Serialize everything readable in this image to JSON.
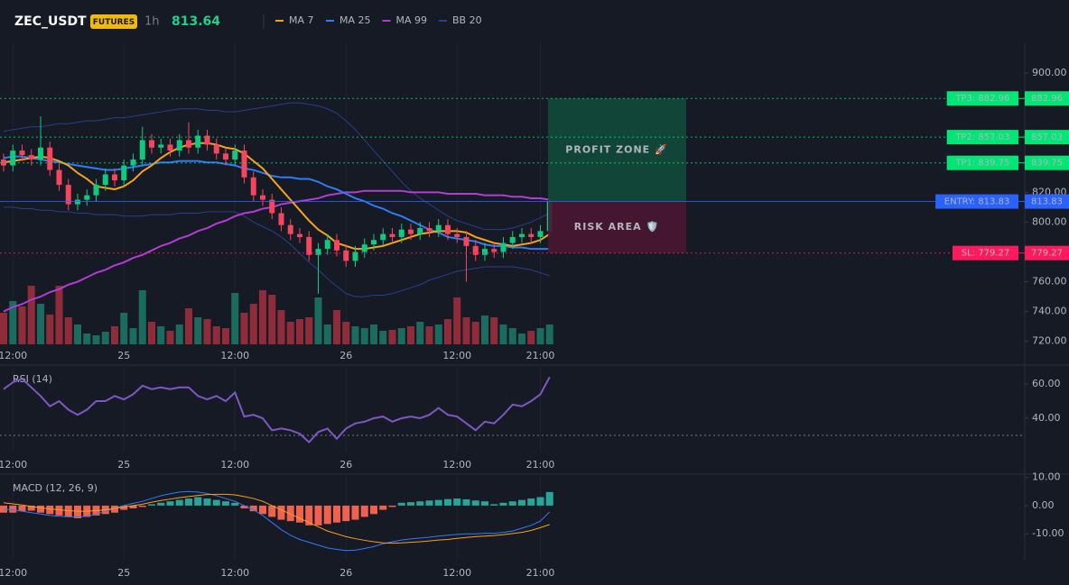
{
  "header": {
    "symbol": "ZEC_USDT",
    "badge": "FUTURES",
    "interval": "1h",
    "price": 813.64
  },
  "chart_data": [
    {
      "type": "candlestick",
      "categories": [
        null,
        "12:00",
        null,
        null,
        null,
        null,
        null,
        null,
        null,
        null,
        null,
        null,
        null,
        "25",
        null,
        null,
        null,
        null,
        null,
        null,
        null,
        null,
        null,
        null,
        null,
        "12:00",
        null,
        null,
        null,
        null,
        null,
        null,
        null,
        null,
        null,
        null,
        null,
        "26",
        null,
        null,
        null,
        null,
        null,
        null,
        null,
        null,
        null,
        null,
        null,
        "12:00",
        null,
        null,
        null,
        null,
        null,
        null,
        null,
        null,
        "21:00",
        null
      ],
      "open": [
        842,
        838,
        848,
        845,
        842,
        850,
        835,
        825,
        812,
        815,
        818,
        825,
        832,
        828,
        838,
        842,
        855,
        850,
        852,
        848,
        855,
        850,
        858,
        852,
        846,
        842,
        848,
        830,
        818,
        815,
        806,
        798,
        792,
        790,
        778,
        782,
        788,
        781,
        774,
        780,
        785,
        788,
        792,
        790,
        795,
        792,
        796,
        794,
        798,
        792,
        790,
        784,
        778,
        782,
        780,
        786,
        790,
        792,
        790,
        794
      ],
      "high": [
        846,
        852,
        852,
        849,
        871,
        854,
        839,
        829,
        819,
        822,
        829,
        836,
        836,
        842,
        846,
        864,
        859,
        856,
        856,
        859,
        867,
        862,
        862,
        856,
        850,
        852,
        852,
        834,
        822,
        819,
        810,
        802,
        796,
        794,
        786,
        792,
        792,
        785,
        784,
        789,
        792,
        796,
        796,
        799,
        799,
        800,
        800,
        802,
        802,
        796,
        794,
        788,
        786,
        786,
        790,
        794,
        796,
        796,
        798,
        816
      ],
      "low": [
        834,
        834,
        841,
        838,
        838,
        831,
        821,
        808,
        808,
        811,
        814,
        821,
        824,
        824,
        834,
        838,
        846,
        846,
        844,
        844,
        846,
        846,
        848,
        842,
        838,
        838,
        826,
        814,
        811,
        802,
        794,
        788,
        786,
        774,
        752,
        778,
        777,
        770,
        770,
        776,
        781,
        784,
        786,
        786,
        788,
        788,
        790,
        790,
        788,
        786,
        760,
        774,
        774,
        776,
        776,
        782,
        786,
        786,
        786,
        790
      ],
      "close": [
        838,
        848,
        845,
        842,
        850,
        835,
        825,
        812,
        815,
        818,
        825,
        832,
        828,
        838,
        842,
        855,
        850,
        852,
        848,
        855,
        850,
        858,
        852,
        846,
        842,
        848,
        830,
        818,
        815,
        806,
        798,
        792,
        790,
        778,
        782,
        788,
        781,
        774,
        780,
        785,
        788,
        792,
        790,
        795,
        792,
        796,
        794,
        798,
        792,
        790,
        784,
        778,
        782,
        780,
        786,
        790,
        792,
        790,
        794,
        813.64
      ],
      "volume": [
        35,
        48,
        42,
        65,
        45,
        33,
        65,
        30,
        22,
        12,
        10,
        14,
        20,
        35,
        18,
        60,
        25,
        20,
        15,
        22,
        40,
        30,
        28,
        20,
        18,
        57,
        35,
        45,
        60,
        55,
        38,
        25,
        28,
        30,
        52,
        22,
        38,
        25,
        20,
        18,
        22,
        15,
        16,
        18,
        20,
        25,
        20,
        22,
        28,
        52,
        30,
        25,
        32,
        30,
        22,
        18,
        12,
        15,
        18,
        22
      ],
      "up_color": "#0ecb81",
      "down_color": "#f6465d",
      "volume_up_color": "#1b6b5e",
      "volume_down_color": "#8e2c3a",
      "series": [
        {
          "name": "MA 7",
          "color": "#f7a21b",
          "values": [
            840,
            841,
            842,
            843,
            844,
            843,
            841,
            838,
            833,
            829,
            824,
            823,
            822,
            824,
            828,
            834,
            838,
            843,
            847,
            850,
            852,
            853,
            853,
            852,
            850,
            849,
            846,
            841,
            836,
            829,
            822,
            815,
            808,
            801,
            795,
            791,
            786,
            784,
            782,
            782,
            783,
            784,
            786,
            788,
            790,
            792,
            793,
            794,
            794,
            794,
            793,
            790,
            788,
            786,
            785,
            784,
            785,
            786,
            788,
            792
          ]
        },
        {
          "name": "MA 25",
          "color": "#2f7cf6",
          "values": [
            843,
            844,
            844,
            843,
            842,
            841,
            840,
            839,
            838,
            837,
            836,
            835,
            835,
            836,
            837,
            838,
            839,
            840,
            840,
            841,
            841,
            841,
            840,
            840,
            839,
            838,
            836,
            835,
            833,
            831,
            830,
            830,
            829,
            829,
            827,
            824,
            822,
            819,
            816,
            814,
            811,
            809,
            806,
            804,
            801,
            798,
            795,
            793,
            790,
            789,
            788,
            787,
            785,
            784,
            784,
            783,
            783,
            782,
            782,
            782
          ]
        },
        {
          "name": "MA 99",
          "color": "#b43bd4",
          "values": [
            740,
            743,
            745,
            748,
            750,
            753,
            755,
            758,
            760,
            763,
            766,
            768,
            771,
            773,
            776,
            778,
            781,
            784,
            786,
            789,
            791,
            794,
            796,
            799,
            801,
            804,
            806,
            807,
            809,
            810,
            812,
            813,
            814,
            815,
            816,
            818,
            819,
            820,
            820,
            821,
            821,
            821,
            821,
            821,
            820,
            820,
            820,
            820,
            819,
            819,
            819,
            819,
            818,
            818,
            818,
            817,
            817,
            816,
            816,
            815
          ]
        },
        {
          "name": "BB 20",
          "color": "#2a3d8f",
          "values": [
            861,
            862,
            863,
            864,
            864,
            865,
            866,
            866,
            867,
            868,
            868,
            869,
            870,
            870,
            871,
            872,
            873,
            874,
            875,
            876,
            876,
            876,
            875,
            875,
            874,
            874,
            875,
            876,
            877,
            878,
            879,
            880,
            880,
            879,
            878,
            876,
            873,
            868,
            862,
            855,
            848,
            841,
            834,
            827,
            821,
            816,
            812,
            808,
            804,
            801,
            799,
            797,
            795,
            795,
            795,
            796,
            798,
            800,
            803,
            806
          ],
          "lower": [
            810,
            810,
            809,
            809,
            808,
            808,
            807,
            807,
            806,
            806,
            805,
            805,
            805,
            804,
            804,
            804,
            805,
            805,
            805,
            806,
            806,
            806,
            807,
            807,
            807,
            807,
            804,
            800,
            797,
            794,
            790,
            785,
            779,
            773,
            768,
            762,
            757,
            752,
            750,
            750,
            751,
            751,
            752,
            754,
            756,
            758,
            761,
            763,
            765,
            767,
            768,
            769,
            770,
            770,
            770,
            770,
            769,
            768,
            766,
            764
          ]
        }
      ],
      "levels": [
        {
          "label": "TP3: 882.96",
          "value": 882.96,
          "color": "#00e676",
          "style": "dotted"
        },
        {
          "label": "TP2: 857.03",
          "value": 857.03,
          "color": "#00e676",
          "style": "dotted"
        },
        {
          "label": "TP1: 839.75",
          "value": 839.75,
          "color": "#00e676",
          "style": "dotted"
        },
        {
          "label": "ENTRY: 813.83",
          "value": 813.83,
          "color": "#2962ff",
          "style": "solid"
        },
        {
          "label": "SL: 779.27",
          "value": 779.27,
          "color": "#ff1a5e",
          "style": "dotted"
        }
      ],
      "zones": [
        {
          "label": "PROFIT ZONE 🚀",
          "color": "#1fd18a",
          "fill": "#0f4a3a"
        },
        {
          "label": "RISK AREA 🛡️",
          "color": "#ff2a6d",
          "fill": "#4a1632"
        }
      ],
      "ylim": [
        718,
        920
      ],
      "yticks": [
        {
          "value": 900,
          "label": "900.00"
        },
        {
          "value": 820,
          "label": "820.00"
        },
        {
          "value": 800,
          "label": "800.00"
        },
        {
          "value": 760,
          "label": "760.00"
        },
        {
          "value": 740,
          "label": "740.00"
        },
        {
          "value": 720,
          "label": "720.00"
        }
      ]
    },
    {
      "type": "line",
      "title": "RSI (14)",
      "categories": [
        null,
        "12:00",
        null,
        null,
        null,
        null,
        null,
        null,
        null,
        null,
        null,
        null,
        null,
        "25",
        null,
        null,
        null,
        null,
        null,
        null,
        null,
        null,
        null,
        null,
        null,
        "12:00",
        null,
        null,
        null,
        null,
        null,
        null,
        null,
        null,
        null,
        null,
        null,
        "26",
        null,
        null,
        null,
        null,
        null,
        null,
        null,
        null,
        null,
        null,
        null,
        "12:00",
        null,
        null,
        null,
        null,
        null,
        null,
        null,
        null,
        "21:00",
        null
      ],
      "series": [
        {
          "color": "#7e57c2",
          "values": [
            57,
            61,
            63,
            58,
            53,
            47,
            50,
            45,
            42,
            45,
            50,
            50,
            53,
            51,
            54,
            59,
            57,
            58,
            57,
            58,
            58,
            53,
            51,
            53,
            50,
            55,
            41,
            42,
            40,
            33,
            34,
            33,
            31,
            26,
            32,
            34,
            28,
            34,
            37,
            38,
            40,
            41,
            38,
            40,
            41,
            40,
            42,
            46,
            42,
            41,
            37,
            33,
            38,
            37,
            42,
            48,
            47,
            50,
            54,
            64
          ]
        }
      ],
      "levels": [
        30
      ],
      "ylim": [
        20,
        70
      ],
      "yticks": [
        {
          "value": 60,
          "label": "60.00"
        },
        {
          "value": 40,
          "label": "40.00"
        }
      ]
    },
    {
      "type": "macd",
      "title": "MACD (12, 26, 9)",
      "categories": [
        null,
        "12:00",
        null,
        null,
        null,
        null,
        null,
        null,
        null,
        null,
        null,
        null,
        null,
        "25",
        null,
        null,
        null,
        null,
        null,
        null,
        null,
        null,
        null,
        null,
        null,
        "12:00",
        null,
        null,
        null,
        null,
        null,
        null,
        null,
        null,
        null,
        null,
        null,
        "26",
        null,
        null,
        null,
        null,
        null,
        null,
        null,
        null,
        null,
        null,
        null,
        "12:00",
        null,
        null,
        null,
        null,
        null,
        null,
        null,
        null,
        "21:00",
        null
      ],
      "histogram": {
        "up_color": "#26a69a",
        "down_color": "#f0624d",
        "values": [
          -2.5,
          -2.5,
          -2,
          -1.8,
          -2.5,
          -3,
          -3.5,
          -4,
          -4.5,
          -4,
          -3.5,
          -3,
          -2.5,
          -1.5,
          -1,
          -0.5,
          0.5,
          1,
          1.5,
          2,
          2.5,
          3,
          2.5,
          2,
          1.5,
          1,
          -1,
          -2,
          -3,
          -4,
          -5,
          -5.5,
          -6,
          -7,
          -7,
          -6.5,
          -6,
          -5.5,
          -5,
          -4,
          -3,
          -1.5,
          -0.5,
          1,
          1.2,
          1.5,
          1.8,
          2,
          2.3,
          2.5,
          2.2,
          1.8,
          1.5,
          0.5,
          1,
          1.5,
          2,
          2.5,
          3,
          4.8
        ]
      },
      "series": [
        {
          "color": "#2f7cf6",
          "values": [
            -1.3,
            -1.5,
            -2,
            -2.5,
            -3,
            -3.5,
            -3.8,
            -4,
            -4,
            -3.8,
            -3,
            -2,
            -1,
            0,
            0.8,
            1.5,
            2.5,
            3.5,
            4.2,
            4.8,
            5,
            4.8,
            4.3,
            3.5,
            2.5,
            1.5,
            0,
            -1.5,
            -3.5,
            -6,
            -8.5,
            -10.5,
            -12,
            -13,
            -14,
            -15,
            -15.5,
            -15.9,
            -15.8,
            -15.2,
            -14.5,
            -13.5,
            -12.8,
            -12.2,
            -11.8,
            -11.5,
            -11.2,
            -10.8,
            -10.5,
            -10.2,
            -10,
            -10,
            -9.8,
            -9.8,
            -9.5,
            -9,
            -8,
            -7,
            -5.5,
            -2.2
          ]
        },
        {
          "color": "#f7a21b",
          "values": [
            1,
            0.6,
            0.2,
            -0.3,
            -0.8,
            -1.2,
            -1.5,
            -1.8,
            -2,
            -2,
            -1.8,
            -1.5,
            -1,
            -0.5,
            0,
            0.5,
            1.2,
            1.8,
            2.3,
            2.8,
            3.2,
            3.6,
            3.9,
            4,
            4,
            3.8,
            3.2,
            2.5,
            1.5,
            0,
            -1.5,
            -3,
            -4.5,
            -6,
            -7.5,
            -9,
            -10,
            -11,
            -11.7,
            -12.3,
            -12.8,
            -13.2,
            -13.3,
            -13.2,
            -13,
            -12.8,
            -12.5,
            -12.2,
            -12,
            -11.6,
            -11.3,
            -11,
            -10.8,
            -10.6,
            -10.3,
            -9.9,
            -9.5,
            -8.8,
            -7.8,
            -6.7
          ]
        }
      ],
      "ylim": [
        -19.5,
        10.5
      ],
      "yticks": [
        {
          "value": 10,
          "label": "10.00"
        },
        {
          "value": 0,
          "label": "0.00"
        },
        {
          "value": -10,
          "label": "-10.00"
        }
      ]
    }
  ]
}
